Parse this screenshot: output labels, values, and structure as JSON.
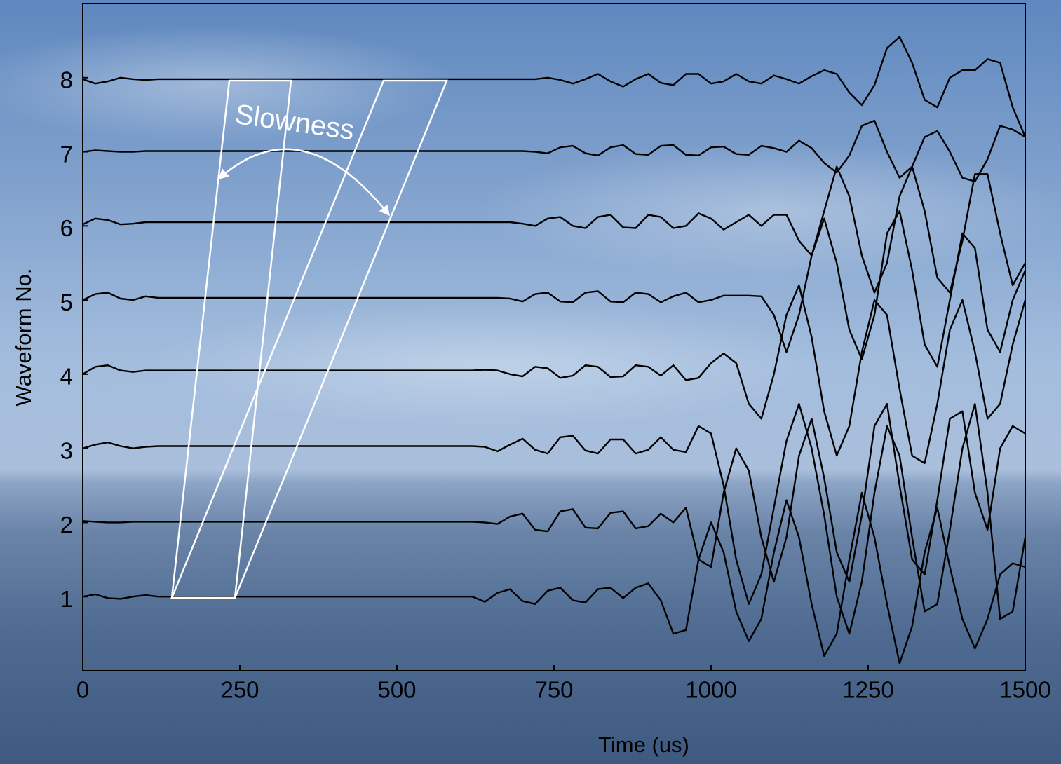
{
  "chart_data": {
    "type": "line",
    "x_label": "Time (us)",
    "y_label": "Waveform No.",
    "annotation": "Slowness",
    "color": "#000000",
    "xlim": [
      0,
      1500
    ],
    "xticks": [
      0,
      250,
      500,
      750,
      1000,
      1250,
      1500
    ],
    "ylim": [
      0,
      9
    ],
    "yticks": [
      1,
      2,
      3,
      4,
      5,
      6,
      7,
      8
    ],
    "x": [
      0,
      20,
      40,
      60,
      80,
      100,
      120,
      140,
      160,
      180,
      200,
      220,
      240,
      260,
      280,
      300,
      320,
      340,
      360,
      380,
      400,
      420,
      440,
      460,
      480,
      500,
      520,
      540,
      560,
      580,
      600,
      620,
      640,
      660,
      680,
      700,
      720,
      740,
      760,
      780,
      800,
      820,
      840,
      860,
      880,
      900,
      920,
      940,
      960,
      980,
      1000,
      1020,
      1040,
      1060,
      1080,
      1100,
      1120,
      1140,
      1160,
      1180,
      1200,
      1220,
      1240,
      1260,
      1280,
      1300,
      1320,
      1340,
      1360,
      1380,
      1400,
      1420,
      1440,
      1460,
      1480,
      1500
    ],
    "series": [
      {
        "values": [
          1.0,
          1.03,
          0.98,
          0.97,
          1.0,
          1.02,
          1.0,
          1.0,
          1.0,
          1.0,
          1.0,
          1.0,
          1.0,
          1.0,
          1.0,
          1.0,
          1.0,
          1.0,
          1.0,
          1.0,
          1.0,
          1.0,
          1.0,
          1.0,
          1.0,
          1.0,
          1.0,
          1.0,
          1.0,
          1.0,
          1.0,
          1.0,
          0.93,
          1.05,
          1.1,
          0.94,
          0.9,
          1.08,
          1.12,
          0.95,
          0.92,
          1.1,
          1.12,
          0.98,
          1.12,
          1.18,
          0.95,
          0.5,
          0.55,
          1.5,
          2.0,
          1.6,
          0.8,
          0.4,
          0.7,
          1.6,
          2.3,
          1.8,
          0.9,
          0.2,
          0.5,
          1.5,
          2.4,
          1.8,
          0.9,
          0.1,
          0.6,
          1.6,
          2.2,
          1.4,
          0.7,
          0.3,
          0.7,
          1.3,
          1.45,
          1.4
        ]
      },
      {
        "values": [
          2.02,
          2.01,
          2.0,
          2.0,
          2.01,
          2.01,
          2.01,
          2.01,
          2.01,
          2.01,
          2.01,
          2.01,
          2.01,
          2.01,
          2.01,
          2.01,
          2.01,
          2.01,
          2.01,
          2.01,
          2.01,
          2.01,
          2.01,
          2.01,
          2.01,
          2.01,
          2.01,
          2.01,
          2.01,
          2.01,
          2.01,
          2.01,
          2.0,
          1.98,
          2.08,
          2.12,
          1.9,
          1.88,
          2.15,
          2.18,
          1.93,
          1.92,
          2.13,
          2.15,
          1.92,
          1.95,
          2.12,
          2.0,
          2.2,
          1.5,
          1.4,
          2.4,
          3.0,
          2.7,
          1.8,
          1.2,
          1.8,
          2.9,
          3.4,
          2.6,
          1.6,
          1.2,
          2.1,
          3.3,
          3.6,
          2.5,
          1.5,
          1.3,
          2.3,
          3.4,
          3.5,
          2.4,
          1.9,
          3.0,
          3.3,
          3.2
        ]
      },
      {
        "values": [
          3.0,
          3.05,
          3.08,
          3.03,
          3.0,
          3.02,
          3.03,
          3.03,
          3.03,
          3.03,
          3.03,
          3.03,
          3.03,
          3.03,
          3.03,
          3.03,
          3.03,
          3.03,
          3.03,
          3.03,
          3.03,
          3.03,
          3.03,
          3.03,
          3.03,
          3.03,
          3.03,
          3.03,
          3.03,
          3.03,
          3.03,
          3.03,
          3.02,
          2.96,
          3.05,
          3.13,
          2.98,
          2.93,
          3.15,
          3.17,
          2.97,
          2.93,
          3.12,
          3.12,
          2.93,
          2.98,
          3.15,
          2.98,
          2.95,
          3.3,
          3.2,
          2.5,
          1.5,
          0.9,
          1.3,
          2.2,
          3.1,
          3.6,
          3.0,
          2.1,
          1.0,
          0.5,
          1.2,
          2.4,
          3.3,
          2.9,
          1.8,
          0.8,
          0.9,
          1.9,
          3.0,
          3.6,
          2.4,
          0.7,
          0.8,
          1.8
        ]
      },
      {
        "values": [
          4.0,
          4.1,
          4.12,
          4.05,
          4.03,
          4.05,
          4.05,
          4.05,
          4.05,
          4.05,
          4.05,
          4.05,
          4.05,
          4.05,
          4.05,
          4.05,
          4.05,
          4.05,
          4.05,
          4.05,
          4.05,
          4.05,
          4.05,
          4.05,
          4.05,
          4.05,
          4.05,
          4.05,
          4.05,
          4.05,
          4.05,
          4.05,
          4.06,
          4.05,
          4.0,
          3.97,
          4.1,
          4.08,
          3.95,
          3.98,
          4.12,
          4.1,
          3.96,
          3.97,
          4.12,
          4.1,
          3.98,
          4.12,
          3.92,
          3.95,
          4.15,
          4.28,
          4.15,
          3.6,
          3.4,
          4.0,
          4.8,
          5.2,
          4.5,
          3.5,
          2.9,
          3.3,
          4.3,
          5.0,
          4.8,
          3.8,
          2.9,
          2.8,
          3.6,
          4.6,
          5.0,
          4.3,
          3.4,
          3.6,
          4.4,
          5.0
        ]
      },
      {
        "values": [
          5.0,
          5.08,
          5.1,
          5.02,
          5.0,
          5.05,
          5.03,
          5.03,
          5.03,
          5.03,
          5.03,
          5.03,
          5.03,
          5.03,
          5.03,
          5.03,
          5.03,
          5.03,
          5.03,
          5.03,
          5.03,
          5.03,
          5.03,
          5.03,
          5.03,
          5.03,
          5.03,
          5.03,
          5.03,
          5.03,
          5.03,
          5.03,
          5.03,
          5.03,
          5.02,
          4.98,
          5.08,
          5.1,
          4.98,
          4.97,
          5.1,
          5.12,
          4.98,
          4.97,
          5.1,
          5.08,
          4.97,
          5.05,
          5.1,
          4.97,
          5.0,
          5.06,
          5.06,
          5.06,
          5.05,
          4.8,
          4.3,
          4.8,
          5.6,
          6.1,
          5.5,
          4.6,
          4.2,
          4.8,
          5.9,
          6.2,
          5.4,
          4.4,
          4.1,
          5.0,
          5.9,
          5.7,
          4.6,
          4.3,
          5.0,
          5.4
        ]
      },
      {
        "values": [
          6.02,
          6.1,
          6.08,
          6.02,
          6.03,
          6.05,
          6.05,
          6.05,
          6.05,
          6.05,
          6.05,
          6.05,
          6.05,
          6.05,
          6.05,
          6.05,
          6.05,
          6.05,
          6.05,
          6.05,
          6.05,
          6.05,
          6.05,
          6.05,
          6.05,
          6.05,
          6.05,
          6.05,
          6.05,
          6.05,
          6.05,
          6.05,
          6.05,
          6.05,
          6.05,
          6.03,
          6.0,
          6.1,
          6.12,
          6.0,
          5.97,
          6.12,
          6.15,
          5.98,
          5.97,
          6.15,
          6.12,
          5.97,
          6.0,
          6.17,
          6.1,
          5.95,
          6.05,
          6.15,
          6.0,
          6.15,
          6.15,
          5.8,
          5.6,
          6.2,
          6.8,
          6.4,
          5.6,
          5.1,
          5.5,
          6.4,
          6.8,
          6.2,
          5.3,
          5.1,
          5.8,
          6.7,
          6.7,
          5.9,
          5.2,
          5.5
        ]
      },
      {
        "values": [
          7.0,
          7.02,
          7.01,
          7.0,
          7.0,
          7.01,
          7.01,
          7.01,
          7.01,
          7.01,
          7.01,
          7.01,
          7.01,
          7.01,
          7.01,
          7.01,
          7.01,
          7.01,
          7.01,
          7.01,
          7.01,
          7.01,
          7.01,
          7.01,
          7.01,
          7.01,
          7.01,
          7.01,
          7.01,
          7.01,
          7.01,
          7.01,
          7.01,
          7.01,
          7.01,
          7.01,
          7.0,
          6.98,
          7.06,
          7.08,
          6.98,
          6.95,
          7.06,
          7.09,
          6.97,
          6.96,
          7.08,
          7.09,
          6.96,
          6.95,
          7.06,
          7.07,
          6.97,
          6.96,
          7.08,
          7.05,
          7.0,
          7.15,
          7.05,
          6.85,
          6.72,
          6.95,
          7.35,
          7.42,
          7.0,
          6.65,
          6.8,
          7.2,
          7.28,
          7.0,
          6.65,
          6.6,
          6.9,
          7.35,
          7.3,
          7.2
        ]
      },
      {
        "values": [
          7.98,
          7.92,
          7.95,
          8.0,
          7.98,
          7.97,
          7.98,
          7.98,
          7.98,
          7.98,
          7.98,
          7.98,
          7.98,
          7.98,
          7.98,
          7.98,
          7.98,
          7.98,
          7.98,
          7.98,
          7.98,
          7.98,
          7.98,
          7.98,
          7.98,
          7.98,
          7.98,
          7.98,
          7.98,
          7.98,
          7.98,
          7.98,
          7.98,
          7.98,
          7.98,
          7.98,
          7.98,
          8.0,
          7.97,
          7.92,
          7.98,
          8.05,
          7.95,
          7.88,
          7.98,
          8.05,
          7.93,
          7.9,
          8.05,
          8.05,
          7.92,
          7.95,
          8.05,
          7.95,
          7.92,
          8.03,
          7.98,
          7.92,
          8.02,
          8.1,
          8.05,
          7.8,
          7.63,
          7.9,
          8.4,
          8.55,
          8.2,
          7.7,
          7.6,
          8.0,
          8.1,
          8.1,
          8.25,
          8.2,
          7.6,
          7.2
        ]
      }
    ]
  }
}
